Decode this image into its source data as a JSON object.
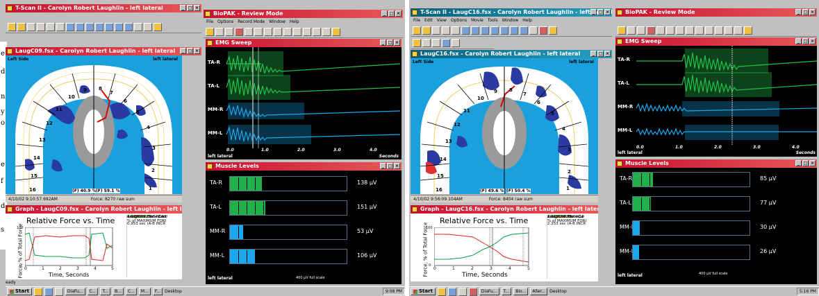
{
  "left": {
    "tscan_title": "T-Scan II - Carolyn Robert Laughlin - left lateral",
    "biopak_title": "BioPAK - Review Mode",
    "biopak_menu": [
      "File",
      "Options",
      "Record Mode",
      "Window",
      "Help"
    ],
    "recording_title": "LaugC09.fsx - Carolyn Robert Laughlin - left lateral",
    "left_side": "Left Side",
    "left_lateral": "left lateral",
    "tooth_numbers": [
      "1",
      "2",
      "3",
      "4",
      "5",
      "6",
      "7",
      "8",
      "9",
      "10",
      "11",
      "12",
      "13",
      "14",
      "15",
      "16"
    ],
    "pct_left": "(F) 40.9 %",
    "pct_right": "(F) 59.1 %",
    "timestamp": "4/10/02 9:10:57.692AM",
    "force": "Force: 8270 raw sum",
    "graph_title_bar": "Graph - LaugC09.fsx - Carolyn Robert Laughlin - left lateral",
    "graph_heading": "Relative Force vs. Time",
    "graph_ylabel": "Force, % of Total Force",
    "graph_xlabel": "Time, Seconds",
    "graph_yticks": [
      "100",
      "90",
      "80",
      "70",
      "60",
      "50",
      "40",
      "30",
      "20",
      "10",
      "0"
    ],
    "graph_xticks": [
      "0",
      "1",
      "2",
      "3",
      "4",
      "5"
    ],
    "note_file": "LaugC09.fsx - Carr",
    "note_time": "4/10/02 9:10:57.692/",
    "note_sec": "0.822 sec (Time)",
    "note_f1": "F = 59.1 %",
    "note_f2": "F = 40.9 %",
    "note_max": "% of MAXIMUM FOR(",
    "note_ab": "0.953 sec (A-B INCR",
    "emg_title": "EMG Sweep",
    "channels": [
      "TA-R",
      "TA-L",
      "MM-R",
      "MM-L"
    ],
    "emg_xticks": [
      "0.0",
      "1.0",
      "2.0",
      "3.0",
      "4.0"
    ],
    "emg_bottom_left": "left lateral",
    "emg_seconds": "Seconds",
    "muscle_title": "Muscle Levels",
    "levels": [
      {
        "name": "TA-R",
        "value": "138 µV",
        "fraction": 0.27,
        "color": "#22b04a"
      },
      {
        "name": "TA-L",
        "value": "151 µV",
        "fraction": 0.3,
        "color": "#22b04a"
      },
      {
        "name": "MM-R",
        "value": "53 µV",
        "fraction": 0.11,
        "color": "#1aa7ec"
      },
      {
        "name": "MM-L",
        "value": "106 µV",
        "fraction": 0.21,
        "color": "#1aa7ec"
      }
    ],
    "muscle_bottom_left": "left lateral",
    "fullscale": "400 µV full scale",
    "side_chars": [
      "e",
      "d",
      "n",
      "y",
      "o",
      "e",
      "f",
      "d",
      "s"
    ],
    "status": "eady",
    "taskbar": {
      "start": "Start",
      "tasks": [
        "DiaFu...",
        "C...",
        "T...",
        "B...",
        "C...",
        "M...",
        "F..."
      ],
      "desktop": "Desktop",
      "time": "9:08 PM"
    }
  },
  "right": {
    "tscan_title": "T-Scan II - LaugC16.fsx - Carolyn Robert Laughlin - left lateral",
    "tscan_menu": [
      "File",
      "Edit",
      "View",
      "Options",
      "Movie",
      "Tools",
      "Window",
      "Help"
    ],
    "biopak_title": "BioPAK - Review Mode",
    "recording_title": "LaugC16.fsx - Carolyn Robert Laughlin - left lateral",
    "left_side": "Left Side",
    "left_lateral": "left lateral",
    "tooth_numbers": [
      "1",
      "2",
      "3",
      "4",
      "5",
      "6",
      "7",
      "8",
      "9",
      "10",
      "11",
      "12",
      "13",
      "14",
      "15",
      "16"
    ],
    "pct_left": "(F) 49.6 %",
    "pct_right": "(F) 50.4 %",
    "timestamp": "4/10/02 9:56:09.104AM",
    "force": "Force: 8404 raw sum",
    "graph_title_bar": "Graph - LaugC16.fsx - Carolyn Robert Laughlin - left lateral",
    "graph_heading": "Relative Force vs. Time",
    "graph_ylabel": "Force, % of Total Force",
    "graph_xlabel": "Time, Seconds",
    "graph_yticks": [
      "100",
      "90",
      "80",
      "70",
      "60",
      "50",
      "40",
      "30",
      "20",
      "10",
      "0"
    ],
    "graph_xticks": [
      "0",
      "1",
      "2",
      "3",
      "4",
      "5"
    ],
    "note_file": "LaugC16.fsx - Ca",
    "note_time": "4/10/02 9:56:09.10",
    "note_sec": "2.311 sec (Time)",
    "note_f1": "F = 50.4 %",
    "note_f2": "F = 49.6 %",
    "note_max": "% of MAXIMUM FOR(",
    "note_ab": "2.253 sec (A-B INCR",
    "emg_title": "EMG Sweep",
    "channels": [
      "TA-R",
      "TA-L",
      "MM-R",
      "MM-L"
    ],
    "emg_xticks": [
      "0.0",
      "1.0",
      "2.0",
      "3.0",
      "4.0"
    ],
    "emg_bottom_left": "left lateral",
    "emg_seconds": "Seconds",
    "muscle_title": "Muscle Levels",
    "levels": [
      {
        "name": "TA-R",
        "value": "85 µV",
        "fraction": 0.17,
        "color": "#22b04a"
      },
      {
        "name": "TA-L",
        "value": "77 µV",
        "fraction": 0.15,
        "color": "#22b04a"
      },
      {
        "name": "MM-R",
        "value": "30 µV",
        "fraction": 0.06,
        "color": "#1aa7ec"
      },
      {
        "name": "MM-L",
        "value": "26 µV",
        "fraction": 0.05,
        "color": "#1aa7ec"
      }
    ],
    "muscle_bottom_left": "left lateral",
    "fullscale": "400 µV full scale",
    "taskbar": {
      "start": "Start",
      "tasks": [
        "DiaFu...",
        "T...",
        "Bio...",
        "Aller..."
      ],
      "desktop": "Desktop",
      "time": "5:16 PM"
    }
  },
  "colors": {
    "titlebar_red": "#c8102e",
    "titlebar_teal": "#0a5f7a",
    "emg_green": "#22c04a",
    "emg_blue": "#1aa7ec",
    "arch_blue": "#1aa0dc"
  }
}
